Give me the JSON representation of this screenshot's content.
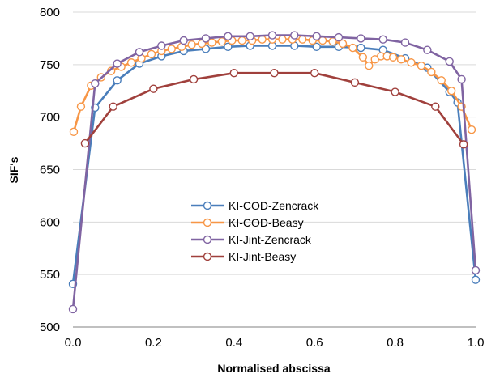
{
  "chart_data": {
    "type": "line",
    "title": "",
    "xlabel": "Normalised abscissa",
    "ylabel": "SIF's",
    "xlim": [
      0.0,
      1.0
    ],
    "ylim": [
      500,
      800
    ],
    "x_ticks": [
      "0.0",
      "0.2",
      "0.4",
      "0.6",
      "0.8",
      "1.0"
    ],
    "y_ticks": [
      "500",
      "550",
      "600",
      "650",
      "700",
      "750",
      "800"
    ],
    "grid": "horizontal",
    "legend_position": "center",
    "series": [
      {
        "name": "KI-COD-Zencrack",
        "color": "#4a7ebb",
        "x": [
          0.0,
          0.055,
          0.11,
          0.165,
          0.22,
          0.275,
          0.33,
          0.385,
          0.44,
          0.495,
          0.55,
          0.605,
          0.66,
          0.715,
          0.77,
          0.825,
          0.88,
          0.935,
          0.955,
          1.0
        ],
        "y": [
          541,
          709,
          735,
          751,
          758,
          763,
          765,
          767,
          768,
          768,
          768,
          767,
          767,
          766,
          764,
          756,
          747,
          724,
          714,
          545
        ]
      },
      {
        "name": "KI-COD-Beasy",
        "color": "#f79646",
        "x": [
          0.002,
          0.02,
          0.045,
          0.07,
          0.095,
          0.12,
          0.145,
          0.17,
          0.195,
          0.22,
          0.245,
          0.27,
          0.295,
          0.32,
          0.345,
          0.37,
          0.395,
          0.42,
          0.445,
          0.47,
          0.495,
          0.52,
          0.545,
          0.57,
          0.595,
          0.62,
          0.645,
          0.67,
          0.695,
          0.72,
          0.735,
          0.75,
          0.765,
          0.78,
          0.795,
          0.815,
          0.84,
          0.865,
          0.89,
          0.915,
          0.94,
          0.965,
          0.99
        ],
        "y": [
          686,
          710,
          730,
          738,
          744,
          748,
          752,
          756,
          760,
          763,
          765,
          767,
          769,
          770,
          771,
          772,
          773,
          773,
          773,
          774,
          774,
          774,
          774,
          774,
          773,
          773,
          772,
          770,
          766,
          757,
          749,
          755,
          758,
          758,
          757,
          755,
          752,
          749,
          743,
          735,
          725,
          710,
          688
        ]
      },
      {
        "name": "KI-Jint-Zencrack",
        "color": "#8064a2",
        "x": [
          0.0,
          0.055,
          0.11,
          0.165,
          0.22,
          0.275,
          0.33,
          0.385,
          0.44,
          0.495,
          0.55,
          0.605,
          0.66,
          0.715,
          0.77,
          0.825,
          0.88,
          0.935,
          0.965,
          1.0
        ],
        "y": [
          517,
          732,
          751,
          762,
          768,
          773,
          775,
          777,
          777,
          778,
          778,
          777,
          776,
          775,
          774,
          771,
          764,
          753,
          736,
          554
        ]
      },
      {
        "name": "KI-Jint-Beasy",
        "color": "#a0403c",
        "x": [
          0.03,
          0.1,
          0.2,
          0.3,
          0.4,
          0.5,
          0.6,
          0.7,
          0.8,
          0.9,
          0.97
        ],
        "y": [
          675,
          710,
          727,
          736,
          742,
          742,
          742,
          733,
          724,
          710,
          674
        ]
      }
    ]
  }
}
